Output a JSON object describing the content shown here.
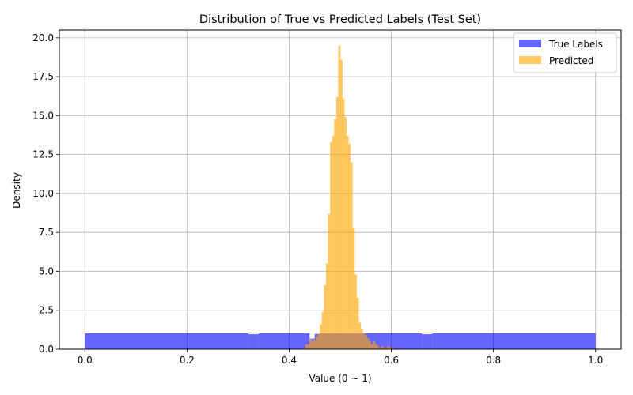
{
  "chart_data": {
    "type": "histogram",
    "title": "Distribution of True vs Predicted Labels (Test Set)",
    "xlabel": "Value (0 ~ 1)",
    "ylabel": "Density",
    "xlim": [
      -0.05,
      1.05
    ],
    "ylim": [
      0,
      20.5
    ],
    "xticks": [
      0.0,
      0.2,
      0.4,
      0.6,
      0.8,
      1.0
    ],
    "xtick_labels": [
      "0.0",
      "0.2",
      "0.4",
      "0.6",
      "0.8",
      "1.0"
    ],
    "yticks": [
      0,
      2.5,
      5,
      7.5,
      10,
      12.5,
      15,
      17.5,
      20
    ],
    "ytick_labels": [
      "0.0",
      "2.5",
      "5.0",
      "7.5",
      "10.0",
      "12.5",
      "15.0",
      "17.5",
      "20.0"
    ],
    "grid": true,
    "legend_position": "top-right",
    "series": [
      {
        "name": "True Labels",
        "color": "#0000ff",
        "opacity": 0.6,
        "bins": [
          {
            "x0": 0.0,
            "x1": 0.32,
            "y": 1.02
          },
          {
            "x0": 0.32,
            "x1": 0.34,
            "y": 0.96
          },
          {
            "x0": 0.34,
            "x1": 0.44,
            "y": 1.02
          },
          {
            "x0": 0.44,
            "x1": 0.45,
            "y": 0.68
          },
          {
            "x0": 0.45,
            "x1": 0.46,
            "y": 0.98
          },
          {
            "x0": 0.46,
            "x1": 0.66,
            "y": 1.02
          },
          {
            "x0": 0.66,
            "x1": 0.68,
            "y": 0.96
          },
          {
            "x0": 0.68,
            "x1": 1.0,
            "y": 1.02
          }
        ]
      },
      {
        "name": "Predicted",
        "color": "#ffa500",
        "opacity": 0.6,
        "bin_width": 0.004,
        "x_start": 0.428,
        "values": [
          0.1,
          0.3,
          0.3,
          0.7,
          0.5,
          0.6,
          0.8,
          1.0,
          1.6,
          2.4,
          4.1,
          5.5,
          8.7,
          13.3,
          13.7,
          14.8,
          16.2,
          19.5,
          18.6,
          16.1,
          14.9,
          13.7,
          13.2,
          12.0,
          7.8,
          4.8,
          3.3,
          1.7,
          1.3,
          1.0,
          0.9,
          0.7,
          0.5,
          0.3,
          0.5,
          0.3,
          0.2,
          0.1,
          0.2,
          0.1,
          0.1,
          0.2,
          0.1,
          0.1,
          0.0
        ]
      }
    ]
  }
}
